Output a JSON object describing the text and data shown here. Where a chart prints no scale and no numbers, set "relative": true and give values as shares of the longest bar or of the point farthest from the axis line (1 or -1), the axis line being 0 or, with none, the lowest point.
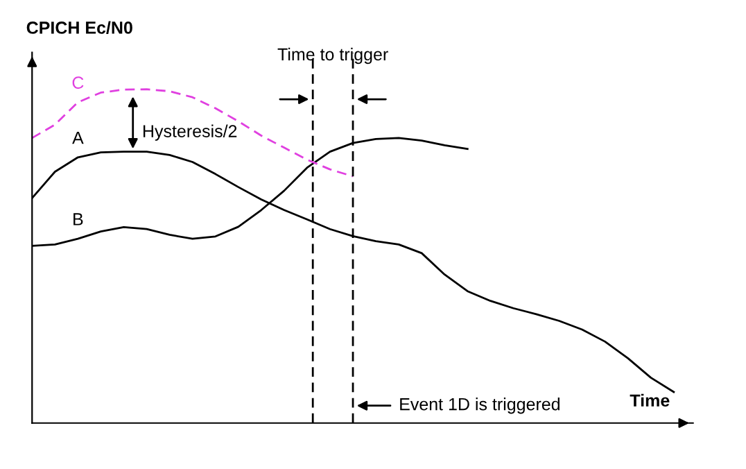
{
  "chart_data": {
    "type": "line",
    "relative": true,
    "xlabel": "Time",
    "ylabel": "CPICH Ec/N0",
    "categories": [
      null,
      null,
      null,
      null,
      null,
      null,
      null,
      null,
      null,
      null,
      null,
      null,
      null,
      null,
      null,
      null,
      null,
      null,
      null,
      null,
      null,
      null,
      null,
      null,
      null,
      null,
      null,
      null,
      null
    ],
    "series": [
      {
        "name": "A",
        "color": "#000000",
        "line_style": "solid",
        "values": [
          0.674,
          0.753,
          0.796,
          0.811,
          0.813,
          0.813,
          0.803,
          0.782,
          0.746,
          0.707,
          0.67,
          0.638,
          0.61,
          0.581,
          0.56,
          0.545,
          0.535,
          0.509,
          0.445,
          0.395,
          0.366,
          0.344,
          0.326,
          0.306,
          0.28,
          0.244,
          0.194,
          0.136,
          0.093
        ]
      },
      {
        "name": "B",
        "color": "#000000",
        "line_style": "solid",
        "values": [
          0.531,
          0.535,
          0.552,
          0.574,
          0.587,
          0.581,
          0.564,
          0.552,
          0.559,
          0.588,
          0.638,
          0.696,
          0.765,
          0.813,
          0.839,
          0.851,
          0.854,
          0.846,
          0.832,
          0.821,
          null,
          null,
          null,
          null,
          null,
          null,
          null,
          null,
          null
        ]
      },
      {
        "name": "C",
        "color": "#e040e0",
        "line_style": "dashed",
        "values": [
          0.854,
          0.894,
          0.961,
          0.99,
          0.999,
          1,
          0.994,
          0.976,
          0.943,
          0.904,
          0.861,
          0.825,
          0.789,
          0.76,
          0.739,
          null,
          null,
          null,
          null,
          null,
          null,
          null,
          null,
          null,
          null,
          null,
          null,
          null,
          null
        ]
      }
    ],
    "annotations": [
      "Hysteresis/2",
      "Time to trigger",
      "Event 1D is triggered"
    ],
    "grid": false,
    "legend": false,
    "marker": "none"
  }
}
